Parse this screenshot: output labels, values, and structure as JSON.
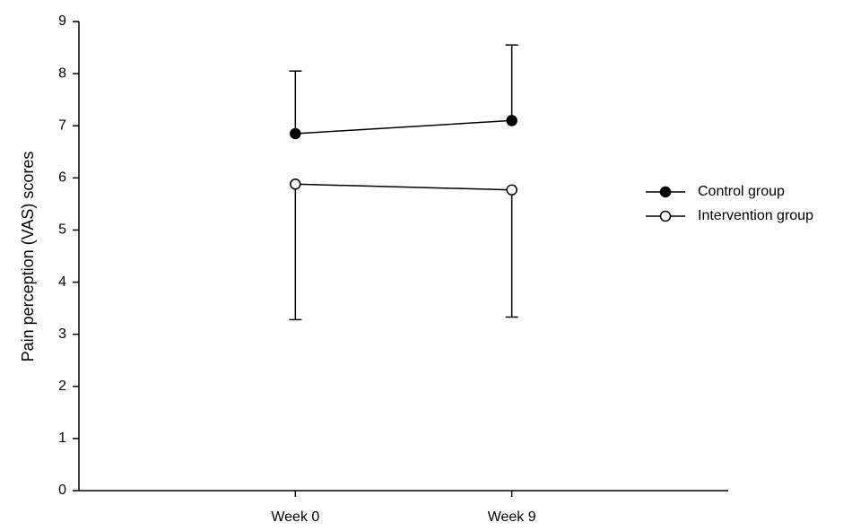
{
  "chart_data": {
    "type": "line",
    "y_label": "Pain perception (VAS) scores",
    "categories": [
      "Week 0",
      "Week 9"
    ],
    "ylim": [
      0,
      9
    ],
    "yticks": [
      0,
      1,
      2,
      3,
      4,
      5,
      6,
      7,
      8,
      9
    ],
    "legend_position": "right",
    "series": [
      {
        "name": "Control group",
        "color": "#000000",
        "marker_fill": "#000000",
        "values": [
          6.85,
          7.1
        ],
        "errors": [
          1.2,
          1.45
        ],
        "error_direction": "up"
      },
      {
        "name": "Intervention group",
        "color": "#000000",
        "marker_fill": "#ffffff",
        "values": [
          5.88,
          5.77
        ],
        "errors": [
          2.6,
          2.44
        ],
        "error_direction": "down"
      }
    ]
  }
}
